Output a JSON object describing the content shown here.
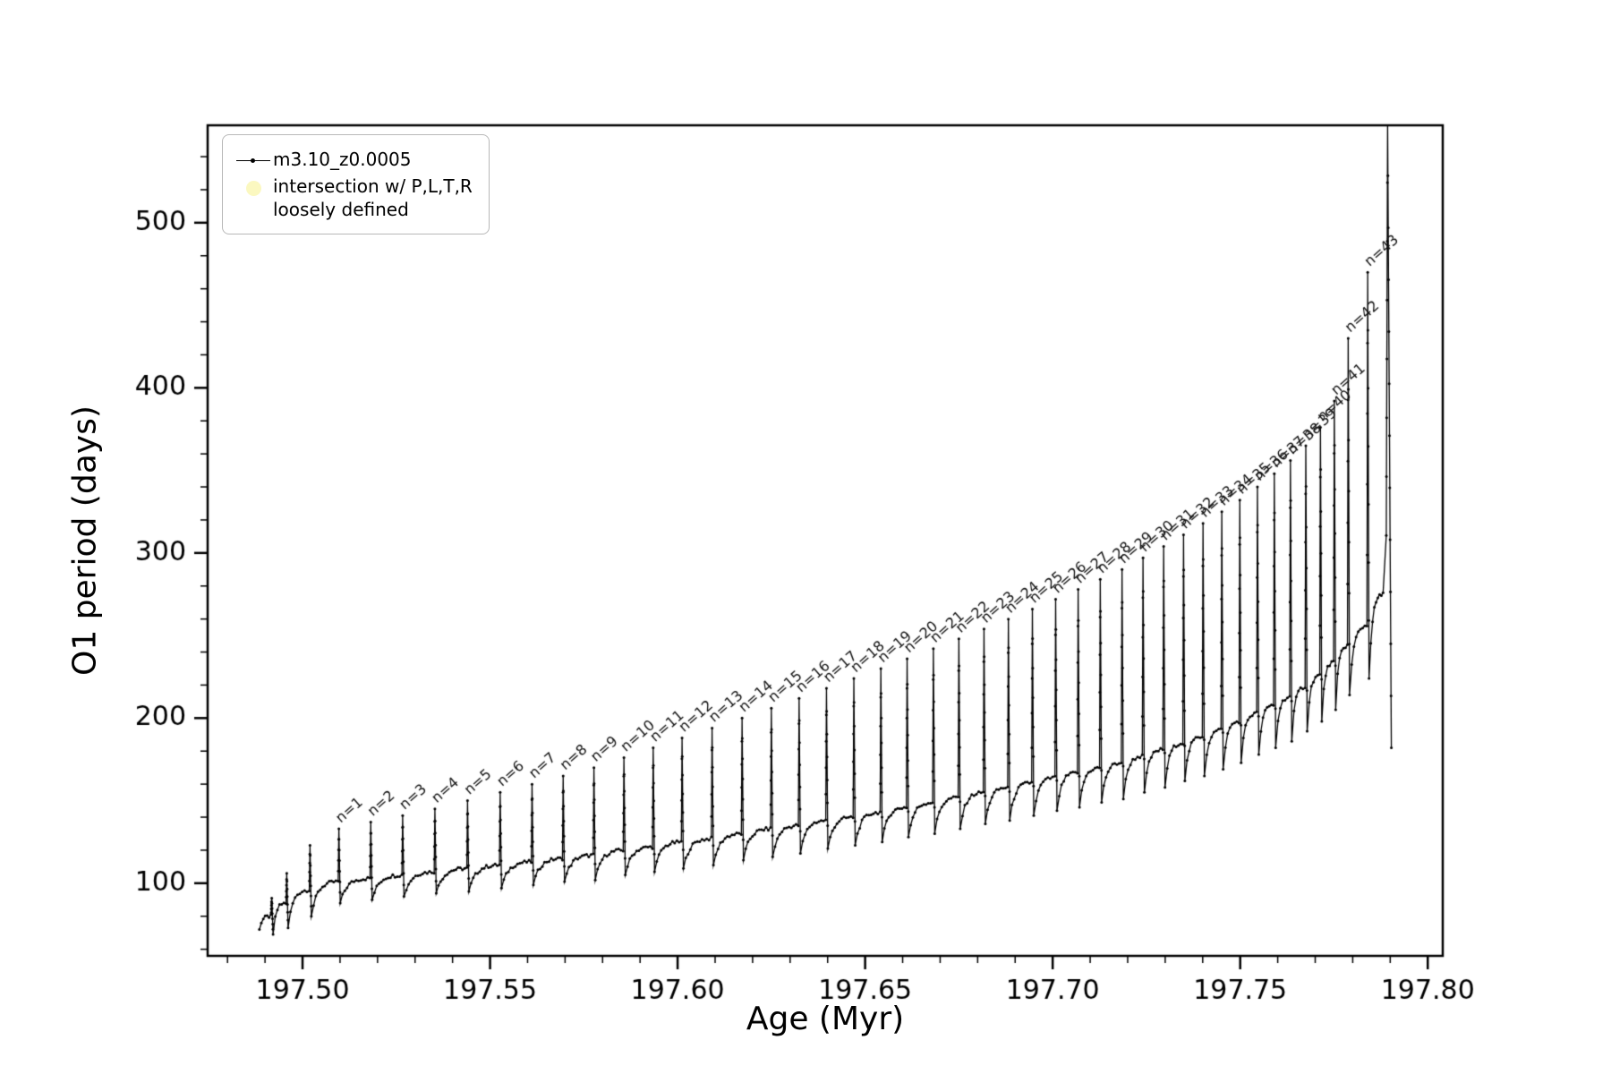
{
  "figure": {
    "background": "#ffffff"
  },
  "chart_data": {
    "type": "line",
    "title": "",
    "xlabel": "Age (Myr)",
    "ylabel": "O1 period (days)",
    "series_color": "#000000",
    "xlim": [
      197.4747,
      197.804
    ],
    "ylim": [
      56,
      559
    ],
    "xticks": [
      197.5,
      197.55,
      197.6,
      197.65,
      197.7,
      197.75,
      197.8
    ],
    "x_minor_step": 0.01,
    "yticks": [
      100,
      200,
      300,
      400,
      500
    ],
    "y_minor_step": 20,
    "grid": false,
    "legend": {
      "position": "upper-left",
      "entries": [
        {
          "label": "m3.10_z0.0005",
          "marker": "line-dot",
          "color": "#000000"
        },
        {
          "label_line1": "intersection w/ P,L,T,R",
          "label_line2": "loosely defined",
          "marker": "dot",
          "color": "#fbf8c0"
        }
      ]
    },
    "start": {
      "age": 197.4885,
      "value": 72
    },
    "pre_spikes": [
      {
        "age": 197.4916,
        "pre": 80,
        "peak": 91,
        "dip": 69
      },
      {
        "age": 197.4956,
        "pre": 88,
        "peak": 106,
        "dip": 73
      },
      {
        "age": 197.5018,
        "pre": 96,
        "peak": 123,
        "dip": 80
      }
    ],
    "dip_ratio": 0.875,
    "pulses": [
      {
        "n": 1,
        "label": "n=1",
        "age": 197.5095,
        "pre": 101,
        "peak": 133
      },
      {
        "n": 2,
        "label": "n=2",
        "age": 197.518,
        "pre": 103,
        "peak": 137
      },
      {
        "n": 3,
        "label": "n=3",
        "age": 197.5265,
        "pre": 105,
        "peak": 141
      },
      {
        "n": 4,
        "label": "n=4",
        "age": 197.5351,
        "pre": 107,
        "peak": 145
      },
      {
        "n": 5,
        "label": "n=5",
        "age": 197.5438,
        "pre": 109,
        "peak": 150
      },
      {
        "n": 6,
        "label": "n=6",
        "age": 197.5525,
        "pre": 111,
        "peak": 155
      },
      {
        "n": 7,
        "label": "n=7",
        "age": 197.561,
        "pre": 113,
        "peak": 160
      },
      {
        "n": 8,
        "label": "n=8",
        "age": 197.5693,
        "pre": 115,
        "peak": 165
      },
      {
        "n": 9,
        "label": "n=9",
        "age": 197.5775,
        "pre": 117,
        "peak": 170
      },
      {
        "n": 10,
        "label": "n=10",
        "age": 197.5855,
        "pre": 120,
        "peak": 176
      },
      {
        "n": 11,
        "label": "n=11",
        "age": 197.5933,
        "pre": 122,
        "peak": 182
      },
      {
        "n": 12,
        "label": "n=12",
        "age": 197.601,
        "pre": 125,
        "peak": 188
      },
      {
        "n": 13,
        "label": "n=13",
        "age": 197.609,
        "pre": 127,
        "peak": 194
      },
      {
        "n": 14,
        "label": "n=14",
        "age": 197.617,
        "pre": 130,
        "peak": 200
      },
      {
        "n": 15,
        "label": "n=15",
        "age": 197.6248,
        "pre": 133,
        "peak": 206
      },
      {
        "n": 16,
        "label": "n=16",
        "age": 197.6322,
        "pre": 135,
        "peak": 212
      },
      {
        "n": 17,
        "label": "n=17",
        "age": 197.6395,
        "pre": 138,
        "peak": 218
      },
      {
        "n": 18,
        "label": "n=18",
        "age": 197.6468,
        "pre": 140,
        "peak": 224
      },
      {
        "n": 19,
        "label": "n=19",
        "age": 197.654,
        "pre": 143,
        "peak": 230
      },
      {
        "n": 20,
        "label": "n=20",
        "age": 197.661,
        "pre": 146,
        "peak": 236
      },
      {
        "n": 21,
        "label": "n=21",
        "age": 197.668,
        "pre": 149,
        "peak": 242
      },
      {
        "n": 22,
        "label": "n=22",
        "age": 197.6748,
        "pre": 152,
        "peak": 248
      },
      {
        "n": 23,
        "label": "n=23",
        "age": 197.6815,
        "pre": 155,
        "peak": 254
      },
      {
        "n": 24,
        "label": "n=24",
        "age": 197.688,
        "pre": 158,
        "peak": 260
      },
      {
        "n": 25,
        "label": "n=25",
        "age": 197.6944,
        "pre": 161,
        "peak": 266
      },
      {
        "n": 26,
        "label": "n=26",
        "age": 197.7006,
        "pre": 164,
        "peak": 272
      },
      {
        "n": 27,
        "label": "n=27",
        "age": 197.7066,
        "pre": 167,
        "peak": 278
      },
      {
        "n": 28,
        "label": "n=28",
        "age": 197.7125,
        "pre": 170,
        "peak": 284
      },
      {
        "n": 29,
        "label": "n=29",
        "age": 197.7183,
        "pre": 173,
        "peak": 290
      },
      {
        "n": 30,
        "label": "n=30",
        "age": 197.7239,
        "pre": 177,
        "peak": 297
      },
      {
        "n": 31,
        "label": "n=31",
        "age": 197.7294,
        "pre": 181,
        "peak": 304
      },
      {
        "n": 32,
        "label": "n=32",
        "age": 197.7347,
        "pre": 185,
        "peak": 311
      },
      {
        "n": 33,
        "label": "n=33",
        "age": 197.7399,
        "pre": 189,
        "peak": 318
      },
      {
        "n": 34,
        "label": "n=34",
        "age": 197.7449,
        "pre": 193,
        "peak": 325
      },
      {
        "n": 35,
        "label": "n=35",
        "age": 197.7497,
        "pre": 198,
        "peak": 332
      },
      {
        "n": 36,
        "label": "n=36",
        "age": 197.7544,
        "pre": 203,
        "peak": 340
      },
      {
        "n": 37,
        "label": "n=37",
        "age": 197.7589,
        "pre": 208,
        "peak": 348
      },
      {
        "n": 38,
        "label": "n=38",
        "age": 197.7632,
        "pre": 213,
        "peak": 356
      },
      {
        "n": 39,
        "label": "n=39",
        "age": 197.7673,
        "pre": 219,
        "peak": 365
      },
      {
        "n": 40,
        "label": "n=40",
        "age": 197.7712,
        "pre": 226,
        "peak": 376
      },
      {
        "n": 41,
        "label": "n=41",
        "age": 197.7749,
        "pre": 234,
        "peak": 392
      },
      {
        "n": 42,
        "label": "n=42",
        "age": 197.7786,
        "pre": 244,
        "peak": 430
      },
      {
        "n": 43,
        "label": "n=43",
        "age": 197.7838,
        "pre": 256,
        "peak": 470
      }
    ],
    "final": {
      "plateau": 275,
      "spike_age": 197.7893,
      "spike_peak": 560,
      "end_age": 197.7903,
      "end_value": 182
    }
  }
}
